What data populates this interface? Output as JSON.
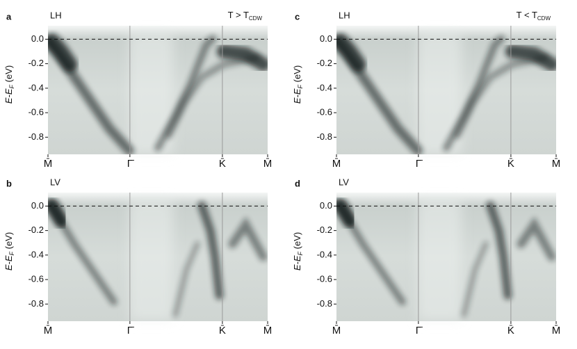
{
  "chart_data": [
    {
      "type": "image",
      "label": "a",
      "polarization": "LH",
      "temperature": {
        "text": "T > T",
        "sub": "CDW"
      },
      "ylabel": {
        "main": "E-E",
        "sub": "F",
        "unit": " (eV)"
      },
      "ylim": [
        -0.94,
        0.11
      ],
      "yticks": [
        {
          "value": 0,
          "label": "0.0"
        },
        -0.2,
        -0.4,
        -0.6,
        -0.8
      ],
      "categories": [
        "M̄",
        "Γ̄",
        "K̄",
        "M̄"
      ]
    },
    {
      "type": "image",
      "label": "b",
      "polarization": "LV",
      "ylabel": {
        "main": "E-E",
        "sub": "F",
        "unit": " (eV)"
      },
      "ylim": [
        -0.94,
        0.11
      ],
      "yticks": [
        {
          "value": 0,
          "label": "0.0"
        },
        -0.2,
        -0.4,
        -0.6,
        -0.8
      ],
      "categories": [
        "M̄",
        "Γ̄",
        "K̄",
        "M̄"
      ]
    },
    {
      "type": "image",
      "label": "c",
      "polarization": "LH",
      "temperature": {
        "text": "T < T",
        "sub": "CDW"
      },
      "ylabel": {
        "main": "E-E",
        "sub": "F",
        "unit": " (eV)"
      },
      "ylim": [
        -0.94,
        0.11
      ],
      "yticks": [
        {
          "value": 0,
          "label": "0.0"
        },
        -0.2,
        -0.4,
        -0.6,
        -0.8
      ],
      "categories": [
        "M̄",
        "Γ̄",
        "K̄",
        "M̄"
      ]
    },
    {
      "type": "image",
      "label": "d",
      "polarization": "LV",
      "ylabel": {
        "main": "E-E",
        "sub": "F",
        "unit": " (eV)"
      },
      "ylim": [
        -0.94,
        0.11
      ],
      "yticks": [
        {
          "value": 0,
          "label": "0.0"
        },
        -0.2,
        -0.4,
        -0.6,
        -0.8
      ],
      "categories": [
        "M̄",
        "Γ̄",
        "K̄",
        "M̄"
      ]
    }
  ]
}
